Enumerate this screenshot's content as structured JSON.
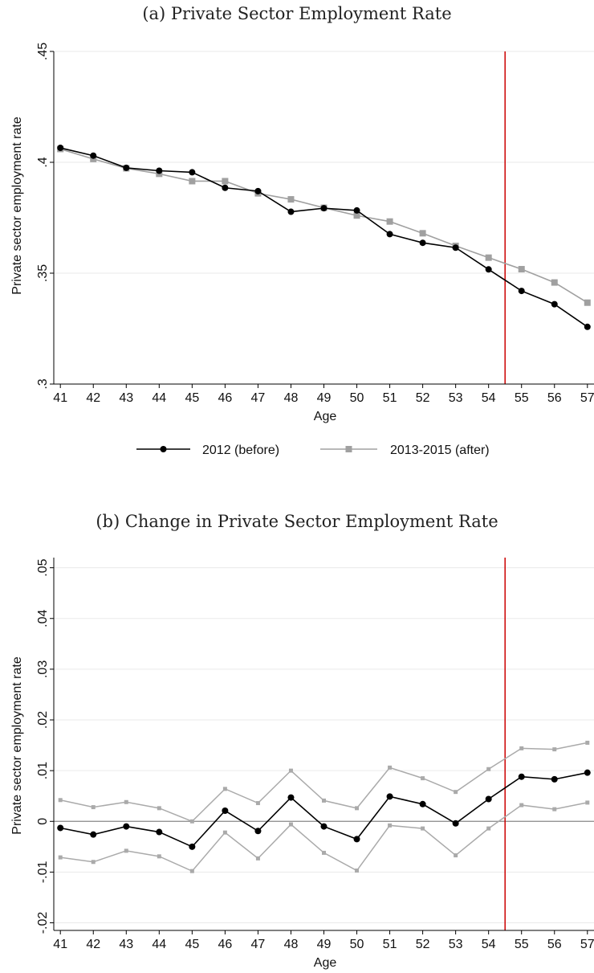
{
  "chart_data": [
    {
      "type": "line",
      "title": "(a) Private Sector Employment Rate",
      "xlabel": "Age",
      "ylabel": "Private sector employment rate",
      "x": [
        41,
        42,
        43,
        44,
        45,
        46,
        47,
        48,
        49,
        50,
        51,
        52,
        53,
        54,
        55,
        56,
        57
      ],
      "xlim": [
        40.8,
        57.2
      ],
      "ylim": [
        0.3,
        0.45
      ],
      "yticks": [
        0.3,
        0.35,
        0.4,
        0.45
      ],
      "ytick_labels": [
        ".3",
        ".35",
        ".4",
        ".45"
      ],
      "grid": true,
      "vertical_line": {
        "x": 54.5,
        "color": "#cc0000"
      },
      "legend_position": "bottom",
      "series": [
        {
          "name": "2012 (before)",
          "color": "#000000",
          "marker": "circle",
          "values": [
            0.4065,
            0.403,
            0.3975,
            0.3962,
            0.3955,
            0.3885,
            0.387,
            0.3777,
            0.3793,
            0.3783,
            0.3676,
            0.3637,
            0.3615,
            0.3517,
            0.342,
            0.336,
            0.3258
          ]
        },
        {
          "name": "2013-2015 (after)",
          "color": "#a0a0a0",
          "marker": "square",
          "values": [
            0.406,
            0.4015,
            0.3973,
            0.3948,
            0.3915,
            0.3915,
            0.386,
            0.3833,
            0.3795,
            0.376,
            0.3733,
            0.368,
            0.3623,
            0.357,
            0.3518,
            0.3458,
            0.3367
          ]
        }
      ]
    },
    {
      "type": "line",
      "title": "(b) Change in Private Sector Employment Rate",
      "xlabel": "Age",
      "ylabel": "Private sector employment rate",
      "x": [
        41,
        42,
        43,
        44,
        45,
        46,
        47,
        48,
        49,
        50,
        51,
        52,
        53,
        54,
        55,
        56,
        57
      ],
      "xlim": [
        40.8,
        57.2
      ],
      "ylim": [
        -0.0215,
        0.052
      ],
      "yticks": [
        -0.02,
        -0.01,
        0,
        0.01,
        0.02,
        0.03,
        0.04,
        0.05
      ],
      "ytick_labels": [
        "-.02",
        "-.01",
        "0",
        ".01",
        ".02",
        ".03",
        ".04",
        ".05"
      ],
      "grid": true,
      "zero_line": true,
      "vertical_line": {
        "x": 54.5,
        "color": "#cc0000"
      },
      "series": [
        {
          "color": "#000000",
          "marker": "circle",
          "values": [
            -0.0013,
            -0.0026,
            -0.001,
            -0.0021,
            -0.005,
            0.0021,
            -0.0019,
            0.0047,
            -0.001,
            -0.0035,
            0.0049,
            0.0034,
            -0.0004,
            0.0044,
            0.0088,
            0.0083,
            0.0096
          ]
        },
        {
          "color": "#aaaaaa",
          "marker": "small-square",
          "values": [
            0.0042,
            0.0028,
            0.0038,
            0.0026,
            0.0,
            0.0064,
            0.0036,
            0.01,
            0.0041,
            0.0026,
            0.0106,
            0.0085,
            0.0058,
            0.0103,
            0.0144,
            0.0142,
            0.0155
          ]
        },
        {
          "color": "#aaaaaa",
          "marker": "small-square",
          "values": [
            -0.0071,
            -0.008,
            -0.0058,
            -0.0069,
            -0.0098,
            -0.0022,
            -0.0073,
            -0.0006,
            -0.0062,
            -0.0097,
            -0.0008,
            -0.0014,
            -0.0067,
            -0.0014,
            0.0032,
            0.0024,
            0.0037
          ]
        }
      ]
    }
  ]
}
